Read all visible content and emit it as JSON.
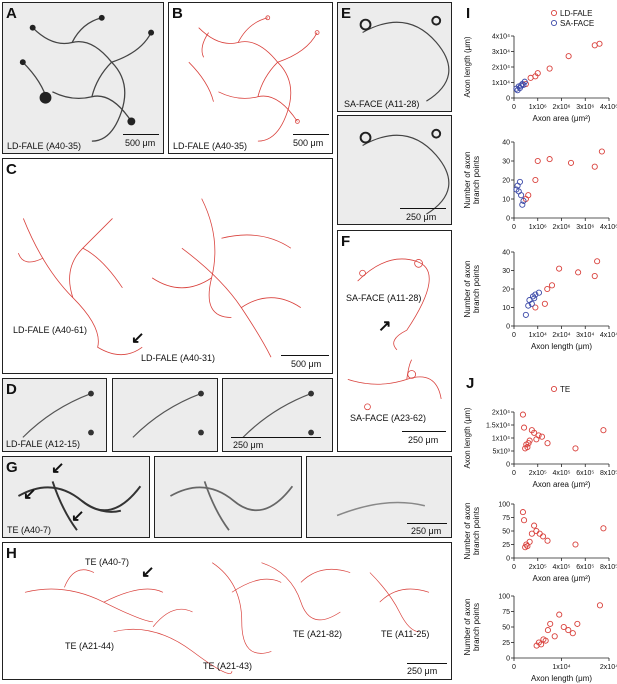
{
  "panels": {
    "A": {
      "label": "A",
      "caption": "LD-FALE (A40-35)",
      "scalebar": "500 μm"
    },
    "B": {
      "label": "B",
      "caption": "LD-FALE (A40-35)",
      "scalebar": "500 μm"
    },
    "C": {
      "label": "C",
      "caption1": "LD-FALE (A40-61)",
      "caption2": "LD-FALE (A40-31)",
      "scalebar": "500 μm"
    },
    "D": {
      "label": "D",
      "caption": "LD-FALE (A12-15)",
      "scalebar": "250 μm"
    },
    "E": {
      "label": "E",
      "caption": "SA-FACE (A11-28)",
      "scalebar": "250 μm"
    },
    "F": {
      "label": "F",
      "caption1": "SA-FACE (A11-28)",
      "caption2": "SA-FACE (A23-62)",
      "scalebar": "250 μm"
    },
    "G": {
      "label": "G",
      "caption": "TE (A40-7)",
      "scalebar": "250 μm"
    },
    "H": {
      "label": "H",
      "caption1": "TE (A40-7)",
      "caption2": "TE (A21-44)",
      "caption3": "TE (A21-43)",
      "caption4": "TE (A21-82)",
      "caption5": "TE (A11-25)",
      "scalebar": "250 μm"
    },
    "I": {
      "label": "I"
    },
    "J": {
      "label": "J"
    }
  },
  "chart_data": [
    {
      "type": "scatter",
      "panel": "I",
      "xlabel": "Axon area (μm²)",
      "ylabel": "Axon length (μm)",
      "xticks": [
        "0",
        "1x10⁶",
        "2x10⁶",
        "3x10⁶",
        "4x10⁶"
      ],
      "yticks": [
        "0",
        "1x10⁴",
        "2x10⁴",
        "3x10⁴",
        "4x10⁴"
      ],
      "xlim": [
        0,
        4000000
      ],
      "ylim": [
        0,
        40000
      ],
      "legend": [
        "LD-FALE",
        "SA-FACE"
      ],
      "series": [
        {
          "name": "LD-FALE",
          "color": "#d9413c",
          "x": [
            500000,
            700000,
            900000,
            1000000,
            1500000,
            2300000,
            3400000,
            3600000
          ],
          "y": [
            9000,
            13000,
            14000,
            16000,
            19000,
            27000,
            34000,
            35000
          ]
        },
        {
          "name": "SA-FACE",
          "color": "#3b49a8",
          "x": [
            100000,
            150000,
            200000,
            250000,
            300000,
            350000,
            400000,
            450000
          ],
          "y": [
            6000,
            5000,
            7500,
            6500,
            8000,
            9000,
            8500,
            10500
          ]
        }
      ]
    },
    {
      "type": "scatter",
      "panel": "I",
      "xlabel": "",
      "ylabel": "Number of axon branch points",
      "xticks": [
        "0",
        "1x10⁶",
        "2x10⁶",
        "3x10⁶",
        "4x10⁶"
      ],
      "yticks": [
        "0",
        "10",
        "20",
        "30",
        "40"
      ],
      "xlim": [
        0,
        4000000
      ],
      "ylim": [
        0,
        40
      ],
      "series": [
        {
          "name": "LD-FALE",
          "color": "#d9413c",
          "x": [
            500000,
            600000,
            900000,
            1000000,
            1500000,
            2400000,
            3400000,
            3700000
          ],
          "y": [
            10,
            12,
            20,
            30,
            31,
            29,
            27,
            35
          ]
        },
        {
          "name": "SA-FACE",
          "color": "#3b49a8",
          "x": [
            100000,
            150000,
            200000,
            250000,
            300000,
            350000,
            400000
          ],
          "y": [
            15,
            17,
            14,
            19,
            12,
            7,
            9
          ]
        }
      ]
    },
    {
      "type": "scatter",
      "panel": "I",
      "xlabel": "Axon length (μm)",
      "ylabel": "Number of axon branch points",
      "xticks": [
        "0",
        "1x10⁴",
        "2x10⁴",
        "3x10⁴",
        "4x10⁴"
      ],
      "yticks": [
        "0",
        "10",
        "20",
        "30",
        "40"
      ],
      "xlim": [
        0,
        40000
      ],
      "ylim": [
        0,
        40
      ],
      "series": [
        {
          "name": "LD-FALE",
          "color": "#d9413c",
          "x": [
            9000,
            13000,
            14000,
            16000,
            19000,
            27000,
            34000,
            35000
          ],
          "y": [
            10,
            12,
            20,
            22,
            31,
            29,
            27,
            35
          ]
        },
        {
          "name": "SA-FACE",
          "color": "#3b49a8",
          "x": [
            5000,
            6000,
            6500,
            7500,
            8000,
            8500,
            9000,
            10500
          ],
          "y": [
            6,
            11,
            14,
            12,
            16,
            15,
            17,
            18
          ]
        }
      ]
    },
    {
      "type": "scatter",
      "panel": "J",
      "xlabel": "Axon area (μm²)",
      "ylabel": "Axon length (μm)",
      "xticks": [
        "0",
        "2x10⁵",
        "4x10⁵",
        "6x10⁵",
        "8x10⁵"
      ],
      "yticks": [
        "0",
        "5x10³",
        "1x10⁴",
        "1.5x10⁴",
        "2x10⁴"
      ],
      "xlim": [
        0,
        850000
      ],
      "ylim": [
        0,
        20000
      ],
      "legend": [
        "TE"
      ],
      "series": [
        {
          "name": "TE",
          "color": "#d9413c",
          "x": [
            80000,
            90000,
            100000,
            110000,
            120000,
            130000,
            140000,
            160000,
            180000,
            200000,
            220000,
            250000,
            300000,
            550000,
            800000
          ],
          "y": [
            19000,
            14000,
            6000,
            7500,
            6500,
            8000,
            9000,
            13000,
            12000,
            9500,
            11000,
            10500,
            8000,
            6000,
            13000
          ]
        }
      ]
    },
    {
      "type": "scatter",
      "panel": "J",
      "xlabel": "Axon area (μm²)",
      "ylabel": "Number of axon branch points",
      "xticks": [
        "0",
        "2x10⁵",
        "4x10⁵",
        "6x10⁵",
        "8x10⁵"
      ],
      "yticks": [
        "0",
        "25",
        "50",
        "75",
        "100"
      ],
      "xlim": [
        0,
        850000
      ],
      "ylim": [
        0,
        100
      ],
      "series": [
        {
          "name": "TE",
          "color": "#d9413c",
          "x": [
            80000,
            90000,
            100000,
            110000,
            120000,
            140000,
            160000,
            180000,
            200000,
            230000,
            260000,
            300000,
            550000,
            800000
          ],
          "y": [
            85,
            70,
            20,
            25,
            22,
            30,
            45,
            60,
            50,
            45,
            40,
            32,
            25,
            55
          ]
        }
      ]
    },
    {
      "type": "scatter",
      "panel": "J",
      "xlabel": "Axon length (μm)",
      "ylabel": "Number of axon branch points",
      "xticks": [
        "0",
        "1x10⁴",
        "2x10⁴"
      ],
      "yticks": [
        "0",
        "25",
        "50",
        "75",
        "100"
      ],
      "xlim": [
        0,
        21000
      ],
      "ylim": [
        0,
        100
      ],
      "series": [
        {
          "name": "TE",
          "color": "#d9413c",
          "x": [
            5000,
            5500,
            6000,
            6500,
            7000,
            7500,
            8000,
            9000,
            10000,
            11000,
            12000,
            13000,
            14000,
            19000
          ],
          "y": [
            20,
            25,
            22,
            30,
            28,
            45,
            55,
            35,
            70,
            50,
            45,
            40,
            55,
            85
          ]
        }
      ]
    }
  ]
}
